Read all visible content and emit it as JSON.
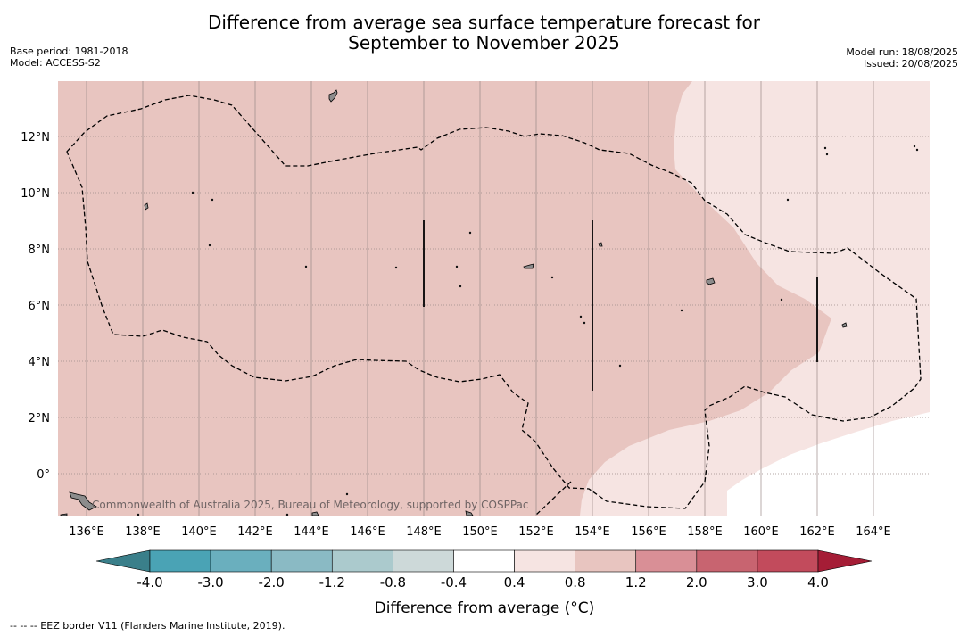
{
  "title_line1": "Difference from average sea surface temperature forecast for",
  "title_line2": "September to November 2025",
  "meta_left": [
    "Base period: 1981-2018",
    "Model: ACCESS-S2"
  ],
  "meta_right": [
    "Model run: 18/08/2025",
    "Issued: 20/08/2025"
  ],
  "copyright": "Commonwealth of Australia 2025, Bureau of Meteorology, supported by COSPPac",
  "footer": "--  --  -- EEZ border V11 (Flanders Marine Institute, 2019).",
  "map": {
    "lon_ticks": [
      "136°E",
      "138°E",
      "140°E",
      "142°E",
      "144°E",
      "146°E",
      "148°E",
      "150°E",
      "152°E",
      "154°E",
      "156°E",
      "158°E",
      "160°E",
      "162°E",
      "164°E"
    ],
    "lat_ticks": [
      "12°N",
      "10°N",
      "8°N",
      "6°N",
      "4°N",
      "2°N",
      "0°"
    ]
  },
  "colorbar": {
    "ticks": [
      "-4.0",
      "-3.0",
      "-2.0",
      "-1.2",
      "-0.8",
      "-0.4",
      "0.4",
      "0.8",
      "1.2",
      "2.0",
      "3.0",
      "4.0"
    ],
    "colors": [
      "#3a7f8a",
      "#4aa3b5",
      "#6aafbe",
      "#8abac4",
      "#abcacd",
      "#cdd9d9",
      "#ffffff",
      "#f6e4e2",
      "#e8c5c0",
      "#d98f96",
      "#c86470",
      "#c24b5c",
      "#a51d36"
    ],
    "label": "Difference from average (°C)"
  },
  "legend_colors": {
    "land": "#8c8c8c",
    "anomaly_0_8_1_2": "#e8c5c0",
    "anomaly_0_4_0_8": "#f6e4e2"
  }
}
